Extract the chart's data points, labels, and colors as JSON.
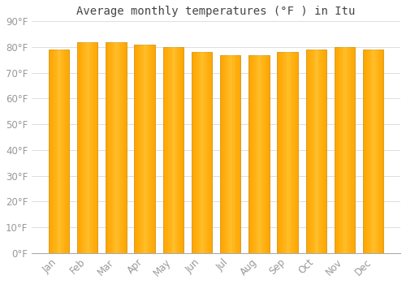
{
  "months": [
    "Jan",
    "Feb",
    "Mar",
    "Apr",
    "May",
    "Jun",
    "Jul",
    "Aug",
    "Sep",
    "Oct",
    "Nov",
    "Dec"
  ],
  "values": [
    79,
    82,
    82,
    81,
    80,
    78,
    77,
    77,
    78,
    79,
    80,
    79
  ],
  "title": "Average monthly temperatures (°F ) in Itu",
  "ylim": [
    0,
    90
  ],
  "yticks": [
    0,
    10,
    20,
    30,
    40,
    50,
    60,
    70,
    80,
    90
  ],
  "bar_color_main": "#FFA500",
  "bar_color_light": "#FFD050",
  "bar_edge_color": "#CC8800",
  "background_color": "#FFFFFF",
  "grid_color": "#DDDDDD",
  "title_fontsize": 10,
  "tick_fontsize": 8.5,
  "tick_color": "#999999",
  "title_color": "#444444"
}
